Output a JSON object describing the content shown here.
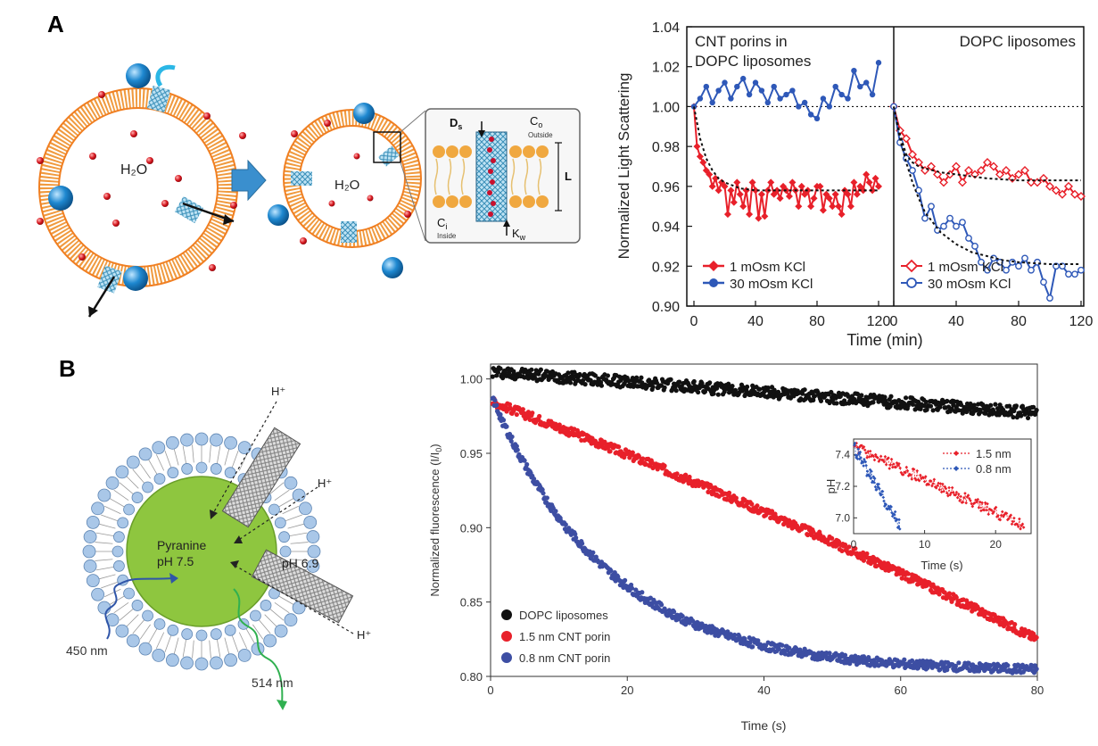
{
  "panels": {
    "a": "A",
    "b": "B"
  },
  "diagram_a": {
    "water": "H₂O",
    "inset": {
      "ds": "D",
      "ds_sub": "s",
      "co": "C",
      "co_sub": "o",
      "outside": "Outside",
      "ci": "C",
      "ci_sub": "i",
      "inside": "Inside",
      "L": "L",
      "kw": "K",
      "kw_sub": "w"
    }
  },
  "diagram_b": {
    "proton": "H⁺",
    "core_line1": "Pyranine",
    "core_line2": "pH 7.5",
    "ph_out": "pH 6.9",
    "excitation": "450 nm",
    "emission": "514 nm"
  },
  "colors": {
    "red": "#e8202a",
    "blue": "#2e58b8",
    "black": "#111111",
    "navy_dot": "#3d4ea3",
    "orange": "#f09a3e",
    "lipid_blue": "#a9c7e8",
    "core_green": "#8ec63f"
  },
  "chart_data": [
    {
      "type": "line",
      "panel": "A",
      "ylabel": "Normalized Light Scattering",
      "xlabel": "Time (min)",
      "ylim": [
        0.9,
        1.04
      ],
      "yticks": [
        "0.90",
        "0.92",
        "0.94",
        "0.96",
        "0.98",
        "1.00",
        "1.02",
        "1.04"
      ],
      "subplots": [
        {
          "title_line1": "CNT porins in",
          "title_line2": "DOPC liposomes",
          "xlim": [
            0,
            120
          ],
          "xticks": [
            "0",
            "40",
            "80",
            "120"
          ],
          "reference_line": 1.0,
          "series": [
            {
              "name": "1 mOsm KCl",
              "marker": "filled-diamond",
              "color": "#e8202a",
              "x": [
                0,
                2,
                4,
                6,
                8,
                10,
                12,
                14,
                16,
                18,
                20,
                22,
                24,
                26,
                28,
                30,
                32,
                34,
                36,
                38,
                40,
                42,
                44,
                46,
                48,
                50,
                52,
                54,
                56,
                58,
                60,
                62,
                64,
                66,
                68,
                70,
                72,
                74,
                76,
                78,
                80,
                82,
                84,
                86,
                88,
                90,
                92,
                94,
                96,
                98,
                100,
                102,
                104,
                106,
                108,
                110,
                112,
                114,
                116,
                118,
                120
              ],
              "y": [
                1.0,
                0.98,
                0.975,
                0.972,
                0.968,
                0.966,
                0.96,
                0.964,
                0.958,
                0.962,
                0.96,
                0.946,
                0.958,
                0.952,
                0.962,
                0.956,
                0.95,
                0.958,
                0.946,
                0.962,
                0.958,
                0.944,
                0.956,
                0.945,
                0.958,
                0.962,
                0.956,
                0.958,
                0.954,
                0.96,
                0.958,
                0.955,
                0.962,
                0.958,
                0.95,
                0.96,
                0.956,
                0.958,
                0.95,
                0.954,
                0.96,
                0.96,
                0.948,
                0.956,
                0.954,
                0.95,
                0.956,
                0.95,
                0.946,
                0.958,
                0.956,
                0.95,
                0.962,
                0.956,
                0.96,
                0.958,
                0.966,
                0.962,
                0.958,
                0.964,
                0.96
              ]
            },
            {
              "name": "30 mOsm KCl",
              "marker": "filled-circle",
              "color": "#2e58b8",
              "x": [
                0,
                4,
                8,
                12,
                16,
                20,
                24,
                28,
                32,
                36,
                40,
                44,
                48,
                52,
                56,
                60,
                64,
                68,
                72,
                76,
                80,
                84,
                88,
                92,
                96,
                100,
                104,
                108,
                112,
                116,
                120
              ],
              "y": [
                1.0,
                1.004,
                1.01,
                1.002,
                1.008,
                1.012,
                1.004,
                1.01,
                1.014,
                1.006,
                1.012,
                1.008,
                1.002,
                1.01,
                1.004,
                1.006,
                1.008,
                1.0,
                1.002,
                0.996,
                0.994,
                1.004,
                1.0,
                1.01,
                1.006,
                1.004,
                1.018,
                1.01,
                1.012,
                1.006,
                1.022
              ]
            },
            {
              "name": "",
              "style": "dotted-fit",
              "color": "#111111",
              "x": [
                0,
                4,
                8,
                12,
                16,
                20,
                30,
                40,
                60,
                80,
                100,
                120
              ],
              "y": [
                1.0,
                0.984,
                0.974,
                0.968,
                0.964,
                0.962,
                0.959,
                0.958,
                0.958,
                0.958,
                0.958,
                0.958
              ]
            }
          ]
        },
        {
          "title_line1": "DOPC liposomes",
          "xlim": [
            0,
            120
          ],
          "xticks": [
            "0",
            "40",
            "80",
            "120"
          ],
          "reference_line": 1.0,
          "series": [
            {
              "name": "1 mOsm KCl",
              "marker": "open-diamond",
              "color": "#e8202a",
              "x": [
                0,
                4,
                8,
                12,
                16,
                20,
                24,
                28,
                32,
                36,
                40,
                44,
                48,
                52,
                56,
                60,
                64,
                68,
                72,
                76,
                80,
                84,
                88,
                92,
                96,
                100,
                104,
                108,
                112,
                116,
                120
              ],
              "y": [
                1.0,
                0.988,
                0.984,
                0.976,
                0.972,
                0.968,
                0.97,
                0.966,
                0.962,
                0.966,
                0.97,
                0.962,
                0.968,
                0.966,
                0.968,
                0.972,
                0.97,
                0.966,
                0.968,
                0.964,
                0.966,
                0.968,
                0.962,
                0.962,
                0.964,
                0.96,
                0.958,
                0.956,
                0.96,
                0.956,
                0.955
              ]
            },
            {
              "name": "30 mOsm KCl",
              "marker": "open-circle",
              "color": "#2e58b8",
              "x": [
                0,
                4,
                8,
                12,
                16,
                20,
                24,
                28,
                32,
                36,
                40,
                44,
                48,
                52,
                56,
                60,
                64,
                68,
                72,
                76,
                80,
                84,
                88,
                92,
                96,
                100,
                104,
                108,
                112,
                116,
                120
              ],
              "y": [
                1.0,
                0.982,
                0.974,
                0.968,
                0.958,
                0.944,
                0.95,
                0.938,
                0.94,
                0.944,
                0.94,
                0.942,
                0.934,
                0.93,
                0.922,
                0.918,
                0.924,
                0.922,
                0.918,
                0.922,
                0.92,
                0.924,
                0.918,
                0.922,
                0.912,
                0.904,
                0.92,
                0.92,
                0.916,
                0.916,
                0.918
              ]
            },
            {
              "name": "",
              "style": "dotted-fit",
              "color": "#111111",
              "x": [
                0,
                4,
                8,
                12,
                16,
                20,
                30,
                40,
                50,
                60,
                80,
                100,
                120
              ],
              "y": [
                1.0,
                0.986,
                0.976,
                0.972,
                0.97,
                0.969,
                0.967,
                0.966,
                0.965,
                0.964,
                0.963,
                0.963,
                0.963
              ]
            },
            {
              "name": "",
              "style": "dotted-fit",
              "color": "#111111",
              "x": [
                0,
                4,
                8,
                12,
                16,
                20,
                30,
                40,
                50,
                60,
                70,
                80,
                100,
                120
              ],
              "y": [
                1.0,
                0.984,
                0.972,
                0.962,
                0.954,
                0.947,
                0.937,
                0.931,
                0.927,
                0.925,
                0.923,
                0.922,
                0.921,
                0.921
              ]
            }
          ]
        }
      ]
    },
    {
      "type": "scatter",
      "panel": "B",
      "ylabel": "Normalized fluorescence (I/I",
      "ylabel_sub": "0",
      "ylabel_end": ")",
      "xlabel": "Time (s)",
      "xlim": [
        0,
        80
      ],
      "ylim": [
        0.8,
        1.01
      ],
      "xticks": [
        "0",
        "20",
        "40",
        "60",
        "80"
      ],
      "yticks": [
        "0.80",
        "0.85",
        "0.90",
        "0.95",
        "1.00"
      ],
      "series": [
        {
          "name": "DOPC liposomes",
          "color": "#111111",
          "model": "linear",
          "start": 1.005,
          "end": 0.977,
          "noise": 0.004
        },
        {
          "name": "1.5 nm CNT porin",
          "color": "#e8202a",
          "model": "linear-curved",
          "start": 0.985,
          "end": 0.825,
          "noise": 0.003
        },
        {
          "name": "0.8 nm CNT porin",
          "color": "#3d4ea3",
          "model": "exponential",
          "start": 0.99,
          "plateau": 0.803,
          "tau": 17,
          "noise": 0.003
        }
      ],
      "inset": {
        "type": "line",
        "ylabel": "pH",
        "xlabel": "Time (s)",
        "xlim": [
          0,
          25
        ],
        "ylim": [
          6.9,
          7.5
        ],
        "xticks": [
          "0",
          "10",
          "20"
        ],
        "yticks": [
          "7.0",
          "7.2",
          "7.4"
        ],
        "series": [
          {
            "name": "1.5 nm",
            "color": "#e8202a",
            "marker": "diamond",
            "t_end": 24,
            "start": 7.45,
            "end": 6.95,
            "noise": 0.035
          },
          {
            "name": "0.8 nm",
            "color": "#2e58b8",
            "marker": "diamond",
            "t_end": 6.5,
            "start": 7.45,
            "end": 6.95,
            "noise": 0.04
          }
        ]
      }
    }
  ]
}
